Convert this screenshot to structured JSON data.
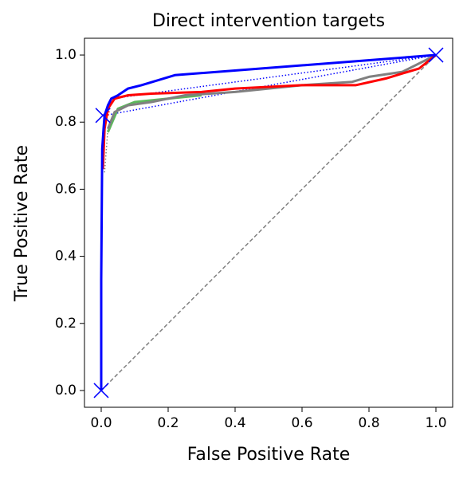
{
  "chart_data": {
    "type": "line",
    "title": "Direct intervention targets",
    "xlabel": "False Positive Rate",
    "ylabel": "True Positive Rate",
    "xlim": [
      -0.05,
      1.05
    ],
    "ylim": [
      -0.05,
      1.05
    ],
    "xticks": [
      {
        "value": 0,
        "label": "0.0"
      },
      0.2,
      0.4,
      0.6,
      0.8,
      {
        "value": 1,
        "label": "1.0"
      }
    ],
    "yticks": [
      {
        "value": 0,
        "label": "0.0"
      },
      0.2,
      0.4,
      0.6,
      0.8,
      {
        "value": 1,
        "label": "1.0"
      }
    ],
    "series": [
      {
        "color": "#808080",
        "style": "dashed",
        "width": 1.5,
        "x": [
          0,
          1
        ],
        "values": [
          0,
          1
        ]
      },
      {
        "color": "#0000ff",
        "style": "dotted",
        "width": 1.5,
        "x": [
          0.01,
          1
        ],
        "values": [
          0.82,
          1
        ]
      },
      {
        "color": "#0000ff",
        "style": "dotted",
        "width": 1.5,
        "x": [
          0.03,
          1
        ],
        "values": [
          0.87,
          1
        ]
      },
      {
        "color": "#808080",
        "style": "dotted",
        "width": 1.5,
        "x": [
          0.01,
          0.02
        ],
        "values": [
          0.65,
          0.78
        ]
      },
      {
        "color": "#5cb85c",
        "style": "solid",
        "width": 3,
        "x": [
          0.02,
          0.05,
          0.1,
          0.3
        ],
        "values": [
          0.77,
          0.84,
          0.86,
          0.88
        ]
      },
      {
        "color": "#808080",
        "style": "solid",
        "width": 3,
        "x": [
          0.02,
          0.04,
          0.08,
          0.15,
          0.25,
          0.4,
          0.6,
          0.75,
          0.8,
          0.9,
          1
        ],
        "values": [
          0.78,
          0.83,
          0.85,
          0.86,
          0.88,
          0.89,
          0.91,
          0.92,
          0.935,
          0.95,
          1
        ]
      },
      {
        "color": "#ff0000",
        "style": "dotted",
        "width": 2,
        "x": [
          0.02,
          0.03,
          0.05,
          0.1
        ],
        "values": [
          0.82,
          0.86,
          0.875,
          0.88
        ]
      },
      {
        "color": "#ff0000",
        "style": "solid",
        "width": 3,
        "x": [
          0.005,
          0.01,
          0.02,
          0.04,
          0.08,
          0.15,
          0.3,
          0.4,
          0.6,
          0.76,
          0.85,
          0.95,
          1
        ],
        "values": [
          0.66,
          0.78,
          0.84,
          0.87,
          0.88,
          0.885,
          0.89,
          0.9,
          0.91,
          0.91,
          0.93,
          0.96,
          1
        ]
      },
      {
        "color": "#0000ff",
        "style": "solid",
        "width": 3,
        "x": [
          0,
          0,
          0.003,
          0.007,
          0.01,
          0.02,
          0.03,
          0.05,
          0.08,
          0.12,
          0.22,
          1
        ],
        "values": [
          0,
          0.33,
          0.72,
          0.78,
          0.82,
          0.85,
          0.87,
          0.88,
          0.9,
          0.91,
          0.94,
          1
        ]
      },
      {
        "color": "#0000ff",
        "style": "none",
        "marker": "x",
        "width": 1.5,
        "x": [
          0,
          0.005,
          1
        ],
        "values": [
          0,
          0.82,
          1
        ]
      }
    ]
  }
}
